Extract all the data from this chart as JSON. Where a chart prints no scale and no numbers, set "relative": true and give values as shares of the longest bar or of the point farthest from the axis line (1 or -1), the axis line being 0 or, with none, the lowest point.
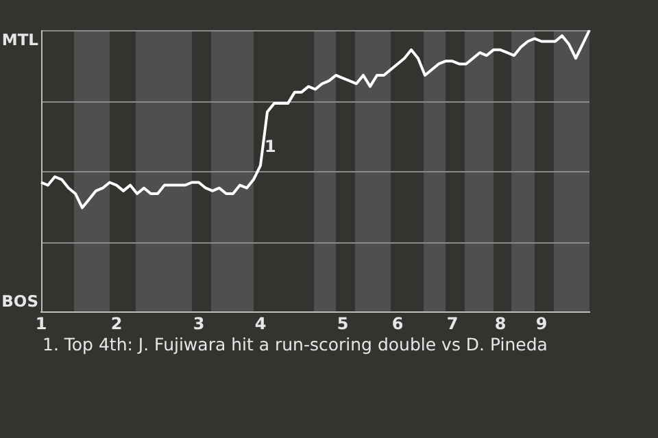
{
  "chart_data": {
    "type": "line",
    "relative": true,
    "categories": [
      "1",
      null,
      null,
      null,
      null,
      null,
      null,
      null,
      null,
      null,
      null,
      "2",
      null,
      null,
      null,
      null,
      null,
      null,
      null,
      null,
      null,
      null,
      null,
      "3",
      null,
      null,
      null,
      null,
      null,
      null,
      null,
      null,
      "4",
      null,
      null,
      null,
      null,
      null,
      null,
      null,
      null,
      null,
      null,
      null,
      "5",
      null,
      null,
      null,
      null,
      null,
      null,
      null,
      "6",
      null,
      null,
      null,
      null,
      null,
      null,
      null,
      "7",
      null,
      null,
      null,
      null,
      null,
      null,
      "8",
      null,
      null,
      null,
      null,
      null,
      "9",
      null,
      null,
      null,
      null,
      null,
      null,
      null
    ],
    "series": [
      {
        "color": "#ffffff",
        "values": [
          0.46,
          0.45,
          0.48,
          0.47,
          0.44,
          0.42,
          0.37,
          0.4,
          0.43,
          0.44,
          0.46,
          0.45,
          0.43,
          0.45,
          0.42,
          0.44,
          0.42,
          0.42,
          0.45,
          0.45,
          0.45,
          0.45,
          0.46,
          0.46,
          0.44,
          0.43,
          0.44,
          0.42,
          0.42,
          0.45,
          0.44,
          0.47,
          0.52,
          0.71,
          0.74,
          0.74,
          0.74,
          0.78,
          0.78,
          0.8,
          0.79,
          0.81,
          0.82,
          0.84,
          0.83,
          0.82,
          0.81,
          0.84,
          0.8,
          0.84,
          0.84,
          0.86,
          0.88,
          0.9,
          0.93,
          0.9,
          0.84,
          0.86,
          0.88,
          0.89,
          0.89,
          0.88,
          0.88,
          0.9,
          0.92,
          0.91,
          0.93,
          0.93,
          0.92,
          0.91,
          0.94,
          0.96,
          0.97,
          0.96,
          0.96,
          0.96,
          0.98,
          0.95,
          0.9,
          0.95,
          1
        ]
      }
    ],
    "marker": "none",
    "annotations": [
      "MTL",
      "BOS",
      "1",
      "1. Top 4th: J. Fujiwara hit a run-scoring double vs D. Pineda"
    ]
  }
}
